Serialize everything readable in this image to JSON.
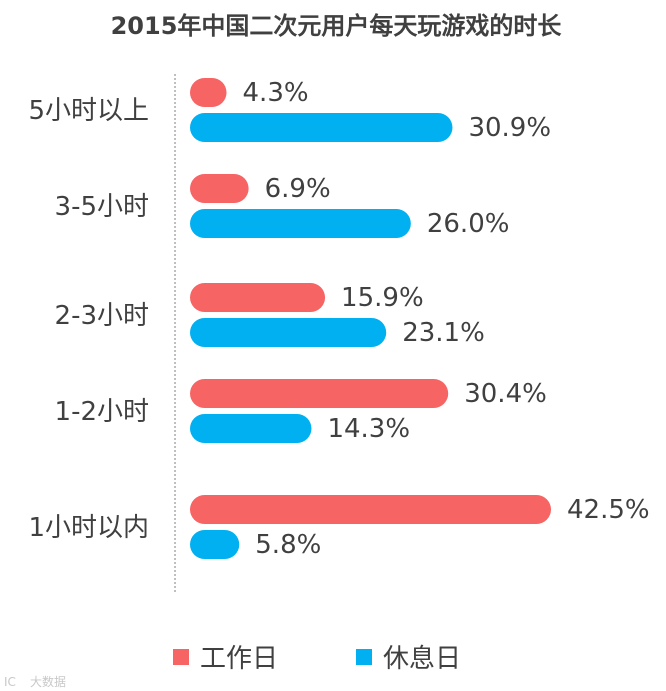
{
  "chart_data": {
    "type": "bar",
    "orientation": "horizontal",
    "title": "2015年中国二次元用户每天玩游戏的时长",
    "categories": [
      "5小时以上",
      "3-5小时",
      "2-3小时",
      "1-2小时",
      "1小时以内"
    ],
    "series": [
      {
        "name": "工作日",
        "color": "#f76464",
        "values": [
          4.3,
          6.9,
          15.9,
          30.4,
          42.5
        ],
        "labels": [
          "4.3%",
          "6.9%",
          "15.9%",
          "30.4%",
          "42.5%"
        ]
      },
      {
        "name": "休息日",
        "color": "#00b0f0",
        "values": [
          30.9,
          26.0,
          23.1,
          14.3,
          5.8
        ],
        "labels": [
          "30.9%",
          "26.0%",
          "23.1%",
          "14.3%",
          "5.8%"
        ]
      }
    ],
    "xlim": [
      0,
      42.5
    ],
    "grid": false,
    "legend_position": "bottom"
  }
}
